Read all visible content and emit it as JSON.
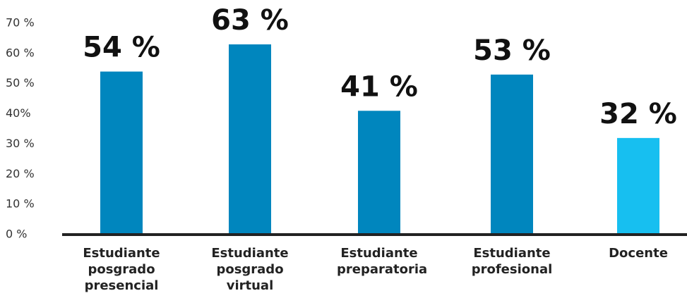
{
  "chart_data": {
    "type": "bar",
    "categories": [
      "Estudiante posgrado presencial",
      "Estudiante posgrado virtual",
      "Estudiante preparatoria",
      "Estudiante profesional",
      "Docente"
    ],
    "values": [
      54,
      63,
      41,
      53,
      32
    ],
    "value_labels": [
      "54 %",
      "63 %",
      "41 %",
      "53 %",
      "32 %"
    ],
    "colors": [
      "#0086be",
      "#0086be",
      "#0086be",
      "#0086be",
      "#17bff0"
    ],
    "ylim": [
      0,
      70
    ],
    "yticks": [
      {
        "value": 0,
        "label": "0 %"
      },
      {
        "value": 10,
        "label": "10 %"
      },
      {
        "value": 20,
        "label": "20 %"
      },
      {
        "value": 30,
        "label": "30 %"
      },
      {
        "value": 40,
        "label": "40%"
      },
      {
        "value": 50,
        "label": "50 %"
      },
      {
        "value": 60,
        "label": "60 %"
      },
      {
        "value": 70,
        "label": "70 %"
      }
    ]
  }
}
